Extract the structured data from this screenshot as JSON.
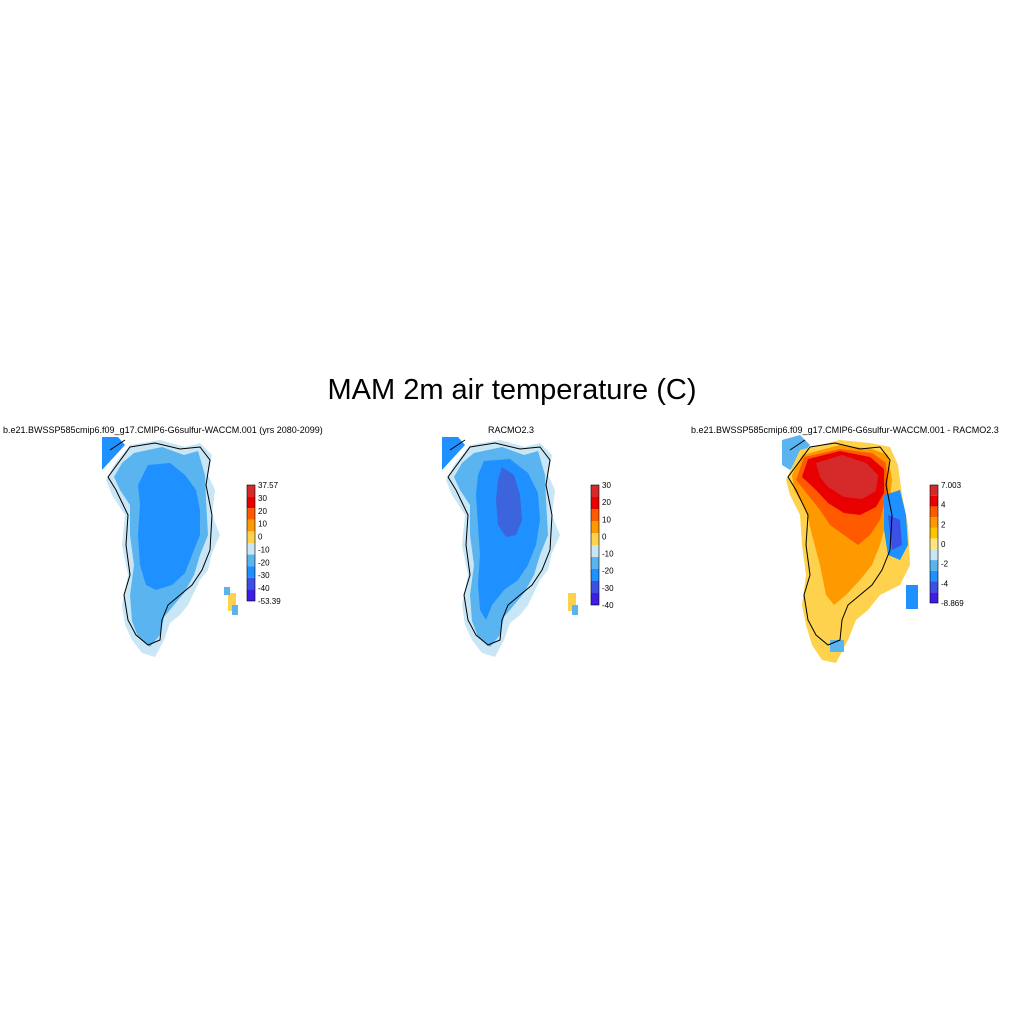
{
  "title": "MAM 2m air temperature (C)",
  "panels": [
    {
      "title": "b.e21.BWSSP585cmip6.f09_g17.CMIP6-G6sulfur-WACCM.001 (yrs 2080-2099)",
      "colorbar": {
        "labels": [
          "37.57",
          "30",
          "20",
          "10",
          "0",
          "-10",
          "-20",
          "-30",
          "-40",
          "-53.39"
        ],
        "colors": [
          "#d62a2a",
          "#e80000",
          "#ff5a00",
          "#ff9900",
          "#ffd24d",
          "#c8e6f5",
          "#5ab4f0",
          "#1e90ff",
          "#3c50e6",
          "#3c1ee6"
        ]
      }
    },
    {
      "title": "RACMO2.3",
      "colorbar": {
        "labels": [
          "30",
          "20",
          "10",
          "0",
          "-10",
          "-20",
          "-30",
          "-40"
        ],
        "colors": [
          "#d62a2a",
          "#e80000",
          "#ff5a00",
          "#ff9900",
          "#ffd24d",
          "#c8e6f5",
          "#5ab4f0",
          "#1e90ff",
          "#3c50e6",
          "#3c1ee6"
        ]
      }
    },
    {
      "title": "b.e21.BWSSP585cmip6.f09_g17.CMIP6-G6sulfur-WACCM.001 - RACMO2.3",
      "colorbar": {
        "labels": [
          "7.003",
          "4",
          "2",
          "0",
          "-2",
          "-4",
          "-8.869"
        ],
        "colors": [
          "#d62a2a",
          "#e80000",
          "#ff5a00",
          "#ff9900",
          "#ffc400",
          "#ffe680",
          "#c8e6f5",
          "#5ab4f0",
          "#1e90ff",
          "#3c50e6",
          "#3c1ee6"
        ]
      }
    }
  ]
}
